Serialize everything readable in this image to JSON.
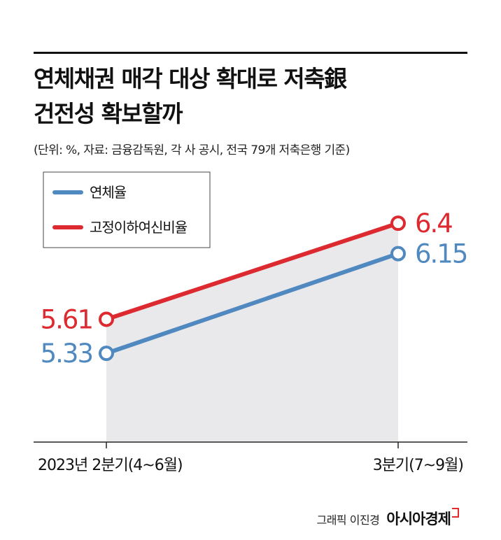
{
  "title_lines": [
    "연체채권 매각 대상 확대로 저축銀",
    "건전성 확보할까"
  ],
  "subtitle": "(단위: %, 자료: 금융감독원, 각 사 공시, 전국 79개 저축은행 기준)",
  "credit": {
    "text": "그래픽 이진경",
    "brand": "아시아경제"
  },
  "colors": {
    "series_blue": "#5088c0",
    "series_red": "#dc2a30",
    "fill": "#e9e9ec",
    "axis": "#222222"
  },
  "chart_data": {
    "type": "line",
    "categories": [
      "2023년 2분기(4~6월)",
      "3분기(7~9월)"
    ],
    "series": [
      {
        "name": "연체율",
        "values": [
          5.33,
          6.15
        ],
        "labels": [
          "5.33",
          "6.15"
        ],
        "color": "#5088c0"
      },
      {
        "name": "고정이하여신비율",
        "values": [
          5.61,
          6.4
        ],
        "labels": [
          "5.61",
          "6.4"
        ],
        "color": "#dc2a30"
      }
    ],
    "ylim": [
      4.6,
      6.7
    ],
    "legend": "top-left",
    "grid": false,
    "shaded_area_under_top_series": true
  }
}
